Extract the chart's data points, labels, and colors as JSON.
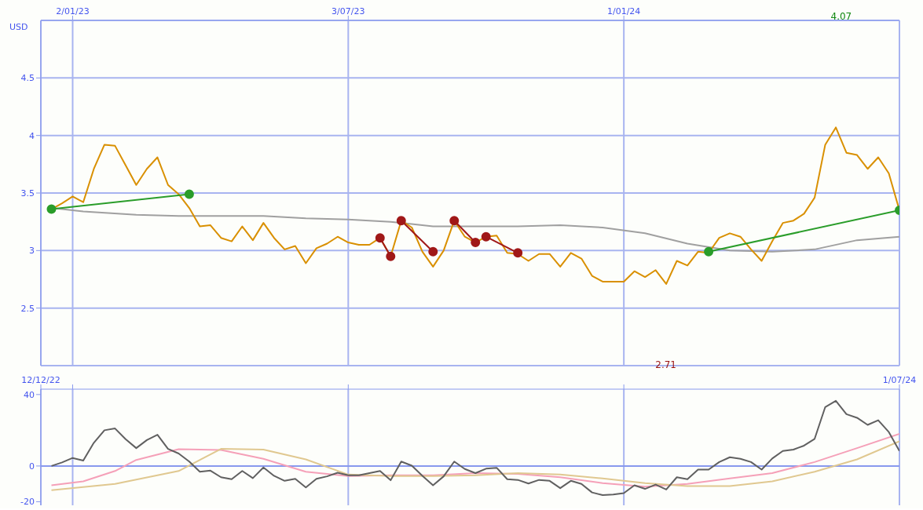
{
  "chart_data": [
    {
      "type": "line",
      "ylabel": "USD",
      "xlim": [
        "2022-12-12",
        "2024-07-01"
      ],
      "ylim": [
        2,
        5
      ],
      "yticks": [
        2.5,
        3,
        3.5,
        4,
        4.5
      ],
      "xticks": [
        {
          "value": "2023-01-02",
          "label": "2/01/23"
        },
        {
          "value": "2023-07-03",
          "label": "3/07/23"
        },
        {
          "value": "2024-01-01",
          "label": "1/01/24"
        }
      ],
      "grid": true,
      "x": [
        "2022-12-19",
        "2022-12-26",
        "2023-01-02",
        "2023-01-09",
        "2023-01-16",
        "2023-01-23",
        "2023-01-30",
        "2023-02-06",
        "2023-02-13",
        "2023-02-20",
        "2023-02-27",
        "2023-03-06",
        "2023-03-13",
        "2023-03-20",
        "2023-03-27",
        "2023-04-03",
        "2023-04-10",
        "2023-04-17",
        "2023-04-24",
        "2023-05-01",
        "2023-05-08",
        "2023-05-15",
        "2023-05-22",
        "2023-05-29",
        "2023-06-05",
        "2023-06-12",
        "2023-06-19",
        "2023-06-26",
        "2023-07-03",
        "2023-07-10",
        "2023-07-17",
        "2023-07-24",
        "2023-07-31",
        "2023-08-07",
        "2023-08-14",
        "2023-08-21",
        "2023-08-28",
        "2023-09-04",
        "2023-09-11",
        "2023-09-18",
        "2023-09-25",
        "2023-10-02",
        "2023-10-09",
        "2023-10-16",
        "2023-10-23",
        "2023-10-30",
        "2023-11-06",
        "2023-11-13",
        "2023-11-20",
        "2023-11-27",
        "2023-12-04",
        "2023-12-11",
        "2023-12-18",
        "2023-12-25",
        "2024-01-01",
        "2024-01-08",
        "2024-01-15",
        "2024-01-22",
        "2024-01-29",
        "2024-02-05",
        "2024-02-12",
        "2024-02-19",
        "2024-02-26",
        "2024-03-04",
        "2024-03-11",
        "2024-03-18",
        "2024-03-25",
        "2024-04-01",
        "2024-04-08",
        "2024-04-15",
        "2024-04-22",
        "2024-04-29",
        "2024-05-06",
        "2024-05-13",
        "2024-05-20",
        "2024-05-27",
        "2024-06-03",
        "2024-06-10",
        "2024-06-17",
        "2024-06-24",
        "2024-07-01"
      ],
      "series": [
        {
          "color": "#a0a0a0",
          "marker": "none",
          "x": [
            "2022-12-19",
            "2023-01-09",
            "2023-02-13",
            "2023-03-13",
            "2023-04-10",
            "2023-05-08",
            "2023-06-05",
            "2023-07-03",
            "2023-07-31",
            "2023-08-28",
            "2023-09-25",
            "2023-10-23",
            "2023-11-20",
            "2023-12-18",
            "2024-01-15",
            "2024-02-12",
            "2024-03-11",
            "2024-04-08",
            "2024-05-06",
            "2024-06-03",
            "2024-07-01"
          ],
          "values": [
            3.37,
            3.34,
            3.31,
            3.3,
            3.3,
            3.3,
            3.28,
            3.27,
            3.25,
            3.21,
            3.21,
            3.21,
            3.22,
            3.2,
            3.15,
            3.06,
            3.0,
            2.99,
            3.01,
            3.09,
            3.12
          ]
        },
        {
          "color": "#d99000",
          "marker": "none",
          "values": [
            3.36,
            3.41,
            3.47,
            3.42,
            3.71,
            3.92,
            3.91,
            3.74,
            3.57,
            3.71,
            3.81,
            3.57,
            3.49,
            3.37,
            3.21,
            3.22,
            3.11,
            3.08,
            3.21,
            3.09,
            3.24,
            3.11,
            3.01,
            3.04,
            2.89,
            3.02,
            3.06,
            3.12,
            3.07,
            3.05,
            3.05,
            3.11,
            2.95,
            3.26,
            3.2,
            2.99,
            2.86,
            3.0,
            3.26,
            3.12,
            3.07,
            3.12,
            3.13,
            2.98,
            2.97,
            2.91,
            2.97,
            2.97,
            2.86,
            2.98,
            2.93,
            2.78,
            2.73,
            2.73,
            2.73,
            2.82,
            2.77,
            2.83,
            2.71,
            2.91,
            2.87,
            2.99,
            2.98,
            3.11,
            3.15,
            3.12,
            3.01,
            2.91,
            3.08,
            3.24,
            3.26,
            3.32,
            3.46,
            3.92,
            4.07,
            3.85,
            3.83,
            3.71,
            3.81,
            3.67,
            3.35
          ]
        },
        {
          "color": "#2a9d2a",
          "marker": "circle",
          "x": [
            "2022-12-19",
            "2023-03-20"
          ],
          "values": [
            3.36,
            3.49
          ]
        },
        {
          "color": "#2a9d2a",
          "marker": "circle",
          "x": [
            "2024-02-26",
            "2024-07-01"
          ],
          "values": [
            2.99,
            3.35
          ]
        },
        {
          "color": "#a01818",
          "marker": "circle",
          "x": [
            "2023-07-24",
            "2023-07-31"
          ],
          "values": [
            3.11,
            2.95
          ]
        },
        {
          "color": "#a01818",
          "marker": "circle",
          "x": [
            "2023-08-07",
            "2023-08-28"
          ],
          "values": [
            3.26,
            2.99
          ]
        },
        {
          "color": "#a01818",
          "marker": "circle",
          "x": [
            "2023-09-11",
            "2023-09-25"
          ],
          "values": [
            3.26,
            3.07
          ]
        },
        {
          "color": "#a01818",
          "marker": "circle",
          "x": [
            "2023-10-02",
            "2023-10-23"
          ],
          "values": [
            3.12,
            2.98
          ]
        }
      ],
      "annotations": [
        "4.07",
        "2.71"
      ]
    },
    {
      "type": "line",
      "xlim": [
        "2022-12-12",
        "2024-07-01"
      ],
      "ylim": [
        -22,
        43
      ],
      "yticks": [
        -20,
        0,
        40
      ],
      "xticks": [
        {
          "value": "2022-12-12",
          "label": "12/12/22"
        },
        {
          "value": "2023-01-02",
          "label": null
        },
        {
          "value": "2023-07-03",
          "label": null
        },
        {
          "value": "2024-01-01",
          "label": null
        },
        {
          "value": "2024-07-01",
          "label": "1/07/24"
        }
      ],
      "grid": "x",
      "ref_lines": [
        {
          "axis": "y",
          "value": 0,
          "color": "#8899ee"
        }
      ],
      "series": [
        {
          "color": "#f5a0b8",
          "marker": "none",
          "x": [
            "2022-12-19",
            "2023-01-09",
            "2023-01-30",
            "2023-02-13",
            "2023-03-13",
            "2023-04-10",
            "2023-05-08",
            "2023-06-05",
            "2023-07-03",
            "2023-07-31",
            "2023-08-28",
            "2023-09-25",
            "2023-10-23",
            "2023-11-20",
            "2023-12-18",
            "2024-01-15",
            "2024-02-12",
            "2024-03-11",
            "2024-04-08",
            "2024-05-06",
            "2024-06-03",
            "2024-07-01"
          ],
          "values": [
            -10.8,
            -8.6,
            -2.8,
            3.4,
            9.4,
            9,
            4,
            -3.2,
            -5.6,
            -5.2,
            -5.2,
            -4,
            -4.4,
            -6.3,
            -9.6,
            -11.6,
            -10,
            -7,
            -4,
            2.2,
            10,
            18
          ]
        },
        {
          "color": "#e0c890",
          "marker": "none",
          "x": [
            "2022-12-19",
            "2023-01-30",
            "2023-03-13",
            "2023-04-10",
            "2023-05-08",
            "2023-06-05",
            "2023-07-03",
            "2023-07-31",
            "2023-08-28",
            "2023-09-25",
            "2023-10-23",
            "2023-11-20",
            "2023-12-18",
            "2024-01-15",
            "2024-02-12",
            "2024-03-11",
            "2024-04-08",
            "2024-05-06",
            "2024-06-03",
            "2024-07-01"
          ],
          "values": [
            -13.5,
            -10,
            -2.8,
            9.6,
            9.2,
            3.7,
            -4.8,
            -5.6,
            -5.6,
            -5.2,
            -4,
            -4.8,
            -7,
            -9.6,
            -11.2,
            -11.2,
            -8.6,
            -3.2,
            3.7,
            13.8
          ]
        },
        {
          "color": "#606060",
          "marker": "none",
          "x": [
            "2022-12-19",
            "2022-12-26",
            "2023-01-02",
            "2023-01-09",
            "2023-01-16",
            "2023-01-23",
            "2023-01-30",
            "2023-02-06",
            "2023-02-13",
            "2023-02-20",
            "2023-02-27",
            "2023-03-06",
            "2023-03-13",
            "2023-03-20",
            "2023-03-27",
            "2023-04-03",
            "2023-04-10",
            "2023-04-17",
            "2023-04-24",
            "2023-05-01",
            "2023-05-08",
            "2023-05-15",
            "2023-05-22",
            "2023-05-29",
            "2023-06-05",
            "2023-06-12",
            "2023-06-19",
            "2023-06-26",
            "2023-07-03",
            "2023-07-10",
            "2023-07-17",
            "2023-07-24",
            "2023-07-31",
            "2023-08-07",
            "2023-08-14",
            "2023-08-21",
            "2023-08-28",
            "2023-09-04",
            "2023-09-11",
            "2023-09-18",
            "2023-09-25",
            "2023-10-02",
            "2023-10-09",
            "2023-10-16",
            "2023-10-23",
            "2023-10-30",
            "2023-11-06",
            "2023-11-13",
            "2023-11-20",
            "2023-11-27",
            "2023-12-04",
            "2023-12-11",
            "2023-12-18",
            "2023-12-25",
            "2024-01-01",
            "2024-01-08",
            "2024-01-15",
            "2024-01-22",
            "2024-01-29",
            "2024-02-05",
            "2024-02-12",
            "2024-02-19",
            "2024-02-26",
            "2024-03-04",
            "2024-03-11",
            "2024-03-18",
            "2024-03-25",
            "2024-04-01",
            "2024-04-08",
            "2024-04-15",
            "2024-04-22",
            "2024-04-29",
            "2024-05-06",
            "2024-05-13",
            "2024-05-20",
            "2024-05-27",
            "2024-06-03",
            "2024-06-10",
            "2024-06-17",
            "2024-06-24",
            "2024-07-01"
          ],
          "values": [
            0,
            2,
            4.5,
            3,
            13,
            20,
            21,
            15,
            10,
            14.5,
            17.5,
            9.6,
            7,
            2.5,
            -3.2,
            -2.6,
            -6.3,
            -7.4,
            -2.8,
            -6.8,
            -0.8,
            -5.5,
            -8.3,
            -7.2,
            -12,
            -7.2,
            -5.8,
            -3.8,
            -5.2,
            -5.2,
            -4,
            -2.8,
            -8,
            2.5,
            0.2,
            -5.5,
            -10.8,
            -5.8,
            2.5,
            -1.7,
            -4,
            -1.5,
            -1,
            -7.4,
            -7.8,
            -9.8,
            -7.8,
            -8.3,
            -12.4,
            -8.3,
            -10,
            -14.8,
            -16.3,
            -16,
            -15.2,
            -10.8,
            -12.8,
            -10.4,
            -13.2,
            -6.3,
            -7.4,
            -2,
            -2,
            2.2,
            4.9,
            4,
            2.2,
            -2,
            4.2,
            8.4,
            9.2,
            11.4,
            15.2,
            33,
            36.5,
            29,
            27,
            23,
            25.6,
            19,
            8.4
          ]
        }
      ]
    }
  ]
}
